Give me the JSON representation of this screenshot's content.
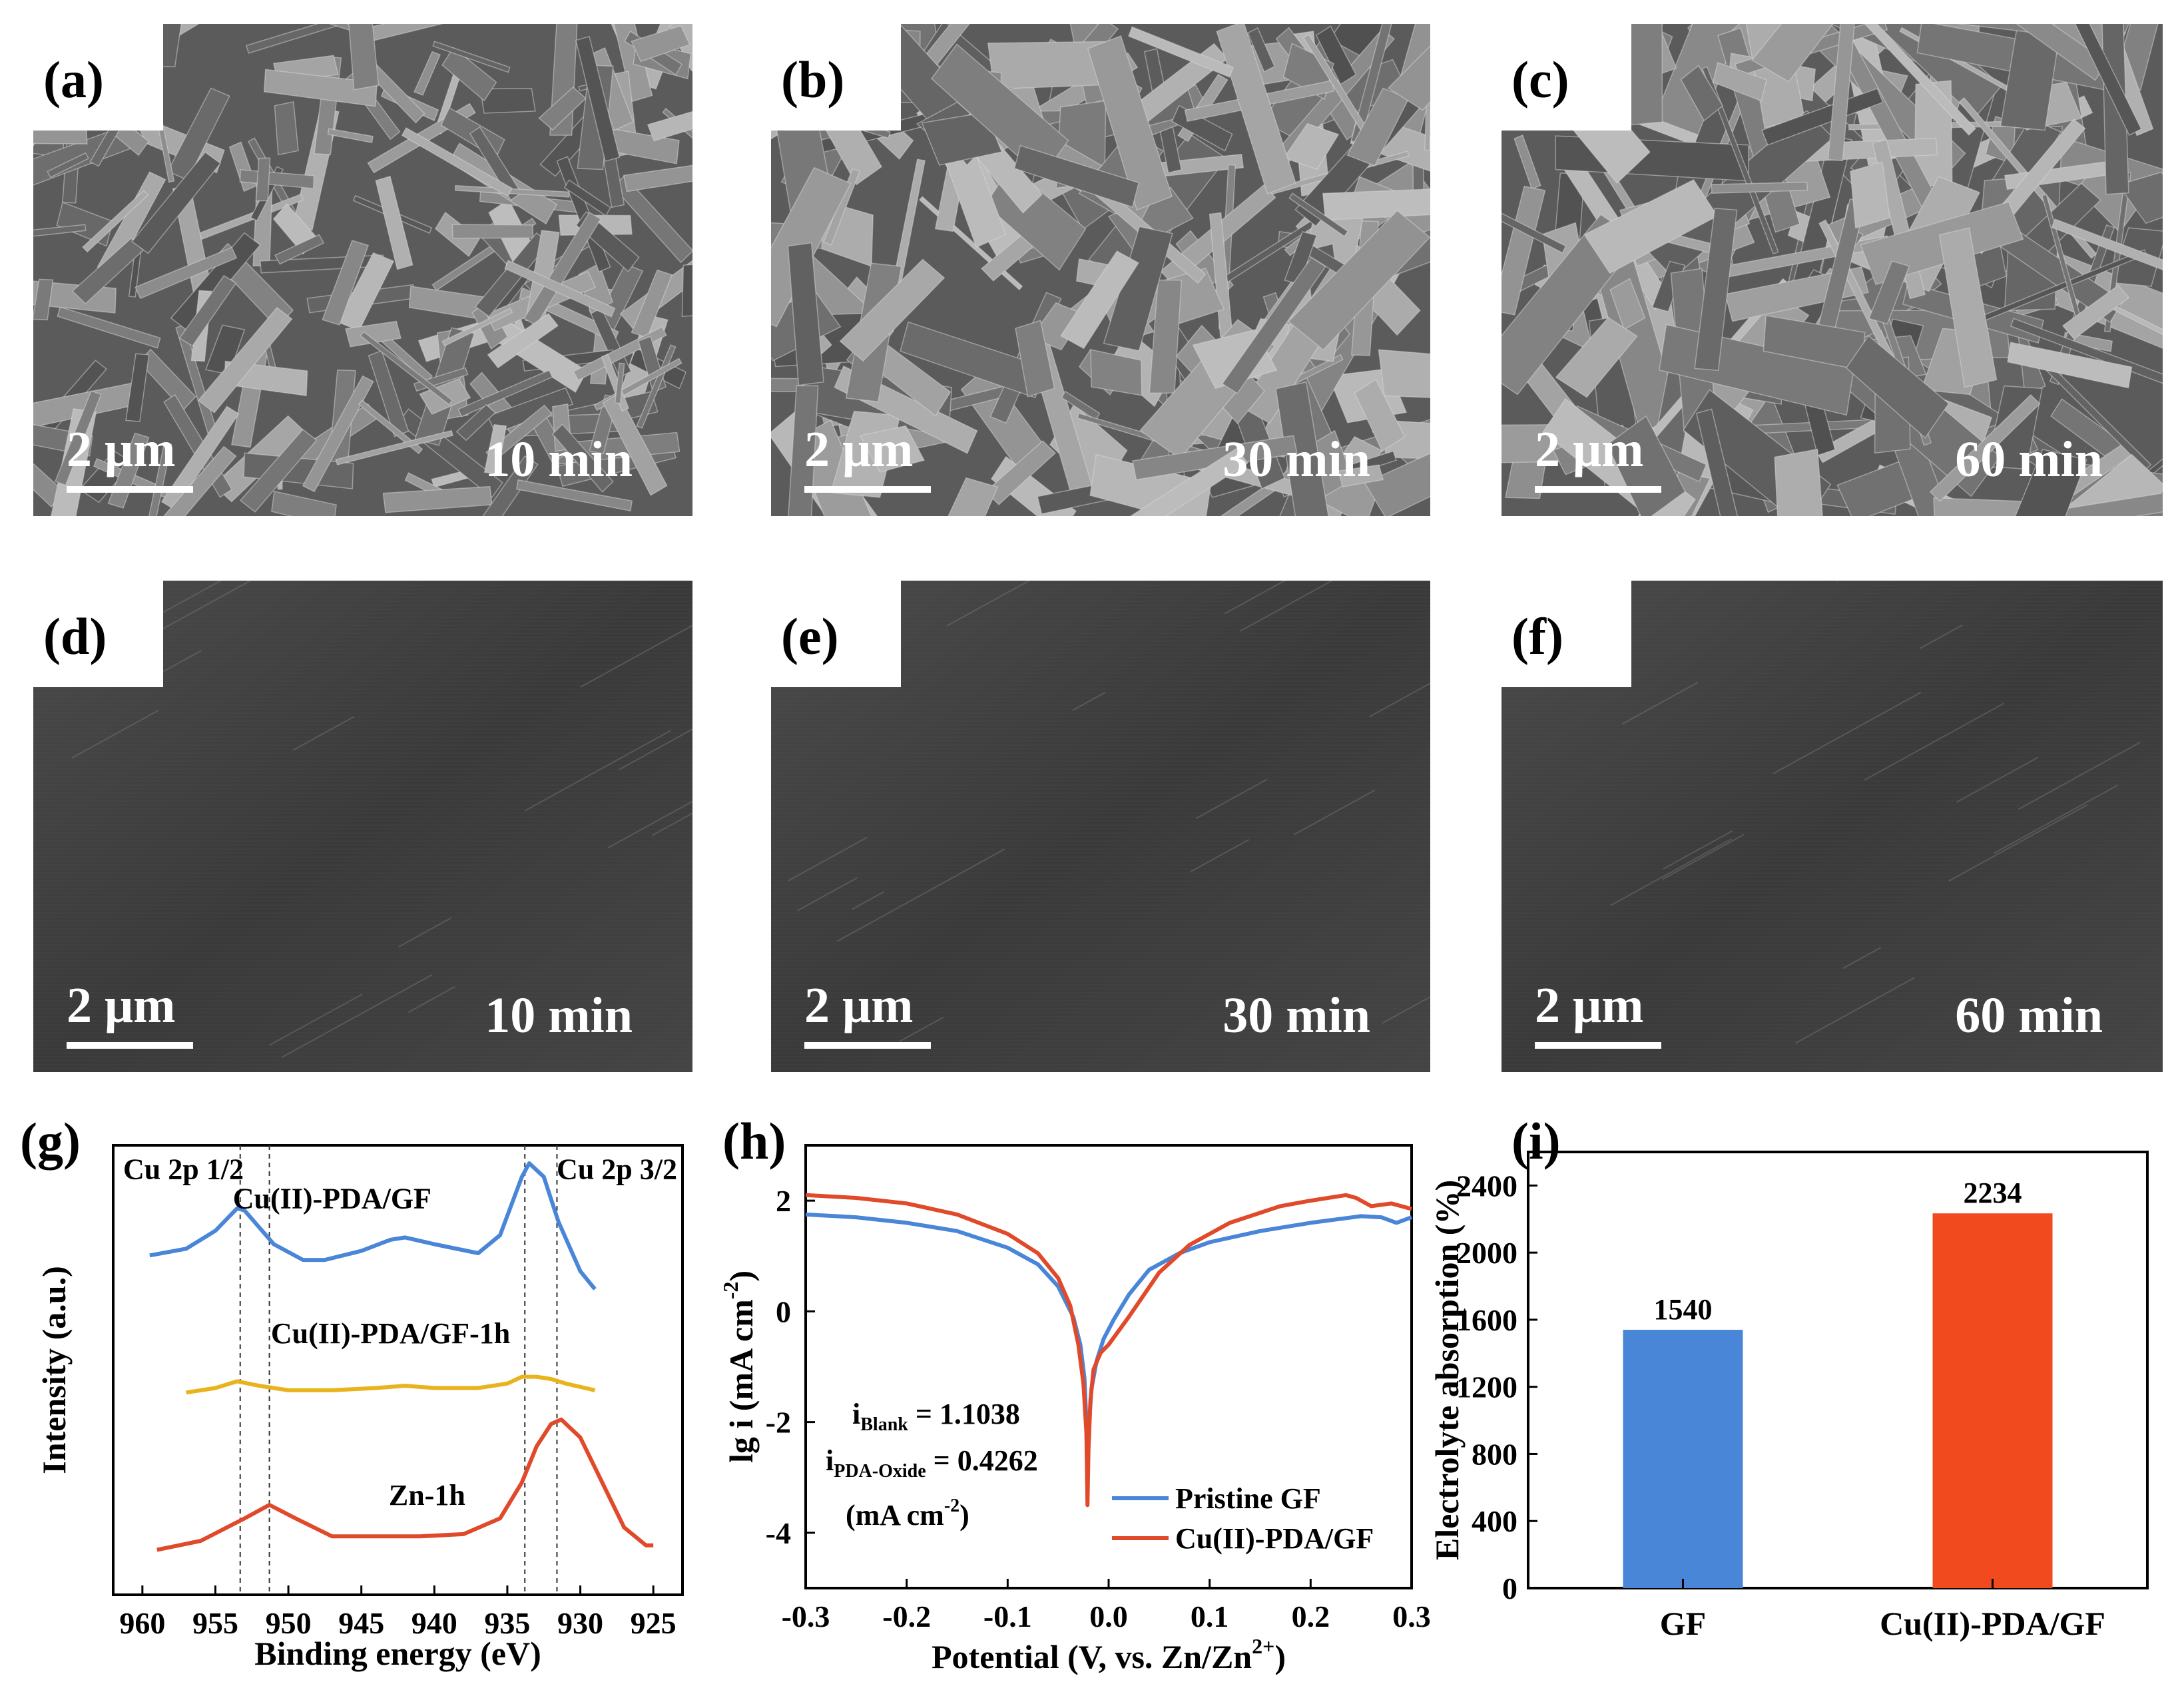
{
  "sem_panels": [
    {
      "letter": "(a)",
      "scale_bar": "2 μm",
      "time": "10 min",
      "texture": "flakes"
    },
    {
      "letter": "(b)",
      "scale_bar": "2 μm",
      "time": "30 min",
      "texture": "flakes"
    },
    {
      "letter": "(c)",
      "scale_bar": "2 μm",
      "time": "60 min",
      "texture": "flakes"
    },
    {
      "letter": "(d)",
      "scale_bar": "2 μm",
      "time": "10 min",
      "texture": "smooth"
    },
    {
      "letter": "(e)",
      "scale_bar": "2 μm",
      "time": "30 min",
      "texture": "smooth"
    },
    {
      "letter": "(f)",
      "scale_bar": "2 μm",
      "time": "60 min",
      "texture": "smooth"
    }
  ],
  "chart_data": [
    {
      "panel": "(g)",
      "type": "line",
      "xlabel": "Binding energy (eV)",
      "ylabel": "Intensity (a.u.)",
      "x_ticks": [
        960,
        955,
        950,
        945,
        940,
        935,
        930,
        925
      ],
      "xlim": [
        962,
        923
      ],
      "x_reversed": true,
      "annotations": [
        "Cu 2p 1/2",
        "Cu 2p 3/2"
      ],
      "reference_lines": [
        953.3,
        951.3,
        933.8,
        931.6
      ],
      "series": [
        {
          "name": "Cu(II)-PDA/GF",
          "color": "#4a86d8",
          "x": [
            959.5,
            957,
            955,
            953.5,
            953,
            951,
            949,
            947.5,
            945,
            943,
            942,
            940,
            937,
            935.5,
            934,
            933.5,
            932.5,
            931.5,
            930,
            929
          ],
          "y": [
            0.755,
            0.77,
            0.81,
            0.86,
            0.855,
            0.78,
            0.745,
            0.745,
            0.765,
            0.79,
            0.795,
            0.78,
            0.76,
            0.8,
            0.93,
            0.96,
            0.93,
            0.83,
            0.72,
            0.68
          ]
        },
        {
          "name": "Cu(II)-PDA/GF-1h",
          "color": "#e8b31c",
          "x": [
            957,
            955,
            953.5,
            952,
            950,
            947,
            944,
            942,
            940,
            937,
            935,
            934,
            933,
            932,
            931,
            929
          ],
          "y": [
            0.45,
            0.46,
            0.475,
            0.465,
            0.455,
            0.455,
            0.46,
            0.465,
            0.46,
            0.46,
            0.47,
            0.485,
            0.485,
            0.48,
            0.47,
            0.455
          ]
        },
        {
          "name": "Zn-1h",
          "color": "#e04a2a",
          "x": [
            959,
            956,
            953,
            951.3,
            949.5,
            947,
            944,
            941,
            938,
            935.5,
            934,
            933,
            932,
            931.3,
            930,
            928.5,
            927,
            925.5,
            925
          ],
          "y": [
            0.1,
            0.12,
            0.17,
            0.2,
            0.17,
            0.13,
            0.13,
            0.13,
            0.135,
            0.17,
            0.25,
            0.33,
            0.38,
            0.39,
            0.35,
            0.25,
            0.15,
            0.11,
            0.11
          ]
        }
      ]
    },
    {
      "panel": "(h)",
      "type": "line",
      "xlabel": "Potential (V, vs. Zn/Zn",
      "xlabel_sup": "2+",
      "xlabel_end": ")",
      "ylabel": "lg i (mA cm",
      "ylabel_sup": "-2",
      "ylabel_end": ")",
      "xlim": [
        -0.3,
        0.3
      ],
      "ylim": [
        -5,
        3
      ],
      "x_ticks": [
        -0.3,
        -0.2,
        -0.1,
        0.0,
        0.1,
        0.2,
        0.3
      ],
      "y_ticks": [
        2,
        0,
        -2,
        -4
      ],
      "x_tick_labels": [
        "-0.3",
        "-0.2",
        "-0.1",
        "0.0",
        "0.1",
        "0.2",
        "0.3"
      ],
      "y_tick_labels": [
        "2",
        "0",
        "-2",
        "-4"
      ],
      "annotations": [
        {
          "base": "i",
          "sub": "Blank",
          "rest": " = 1.1038"
        },
        {
          "base": "i",
          "sub": "PDA-Oxide",
          "rest": " = 0.4262"
        },
        {
          "base": "(mA cm",
          "sup": "-2",
          "rest": ")"
        }
      ],
      "series": [
        {
          "name": "Pristine GF",
          "color": "#4a86d8",
          "x": [
            -0.3,
            -0.25,
            -0.2,
            -0.15,
            -0.1,
            -0.07,
            -0.05,
            -0.035,
            -0.028,
            -0.024,
            -0.022,
            -0.021,
            -0.02,
            -0.017,
            -0.012,
            -0.005,
            0.005,
            0.02,
            0.04,
            0.07,
            0.1,
            0.15,
            0.2,
            0.25,
            0.27,
            0.285,
            0.3
          ],
          "y": [
            1.75,
            1.7,
            1.6,
            1.45,
            1.15,
            0.85,
            0.45,
            -0.1,
            -0.6,
            -1.2,
            -2.0,
            -3.3,
            -2.2,
            -1.4,
            -0.9,
            -0.5,
            -0.15,
            0.3,
            0.75,
            1.05,
            1.25,
            1.45,
            1.6,
            1.72,
            1.7,
            1.6,
            1.7
          ]
        },
        {
          "name": "Cu(II)-PDA/GF",
          "color": "#e04a2a",
          "x": [
            -0.3,
            -0.25,
            -0.2,
            -0.15,
            -0.1,
            -0.07,
            -0.05,
            -0.038,
            -0.03,
            -0.025,
            -0.022,
            -0.021,
            -0.02,
            -0.018,
            -0.015,
            -0.008,
            0.0,
            0.02,
            0.05,
            0.08,
            0.12,
            0.17,
            0.2,
            0.235,
            0.245,
            0.26,
            0.28,
            0.3
          ],
          "y": [
            2.1,
            2.05,
            1.95,
            1.75,
            1.4,
            1.05,
            0.6,
            0.1,
            -0.6,
            -1.3,
            -2.2,
            -3.5,
            -2.5,
            -1.6,
            -1.05,
            -0.75,
            -0.6,
            -0.1,
            0.7,
            1.2,
            1.6,
            1.9,
            2.0,
            2.1,
            2.05,
            1.9,
            1.95,
            1.85
          ]
        }
      ]
    },
    {
      "panel": "(i)",
      "type": "bar",
      "categories": [
        "GF",
        "Cu(II)-PDA/GF"
      ],
      "values": [
        1540,
        2234
      ],
      "value_labels": [
        "1540",
        "2234"
      ],
      "colors": [
        "#4a86d8",
        "#f04a1e"
      ],
      "ylabel": "Electrolyte absorption (%)",
      "ylim": [
        0,
        2600
      ],
      "y_ticks": [
        0,
        400,
        800,
        1200,
        1600,
        2000,
        2400
      ],
      "y_tick_labels": [
        "0",
        "400",
        "800",
        "1200",
        "1600",
        "2000",
        "2400"
      ]
    }
  ]
}
